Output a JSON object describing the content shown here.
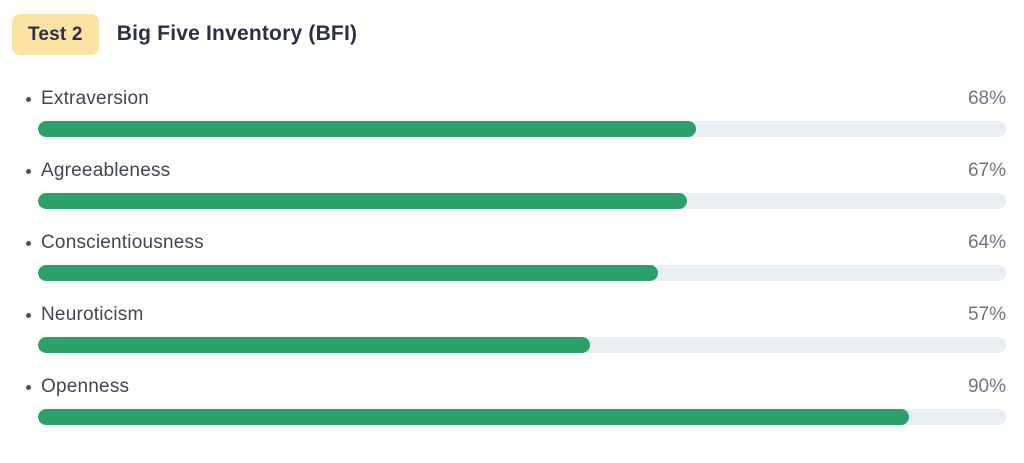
{
  "header": {
    "badge_label": "Test 2",
    "title": "Big Five Inventory (BFI)"
  },
  "colors": {
    "bar_fill": "#2ba169",
    "bar_track": "#e9edf4",
    "badge_bg": "#fce3a4",
    "heading_navy": "#2b3048",
    "label_gray": "#414656",
    "percent_gray": "#6e7480"
  },
  "rows": [
    {
      "label": "Extraversion",
      "percent_label": "68%",
      "value": 68
    },
    {
      "label": "Agreeableness",
      "percent_label": "67%",
      "value": 67
    },
    {
      "label": "Conscientiousness",
      "percent_label": "64%",
      "value": 64
    },
    {
      "label": "Neuroticism",
      "percent_label": "57%",
      "value": 57
    },
    {
      "label": "Openness",
      "percent_label": "90%",
      "value": 90
    }
  ],
  "chart_data": {
    "type": "bar",
    "orientation": "horizontal",
    "title": "Big Five Inventory (BFI)",
    "subtitle_badge": "Test 2",
    "categories": [
      "Extraversion",
      "Agreeableness",
      "Conscientiousness",
      "Neuroticism",
      "Openness"
    ],
    "values": [
      68,
      67,
      64,
      57,
      90
    ],
    "unit": "%",
    "xlim": [
      0,
      100
    ],
    "grid": false,
    "legend": false,
    "value_labels_position": "right"
  }
}
